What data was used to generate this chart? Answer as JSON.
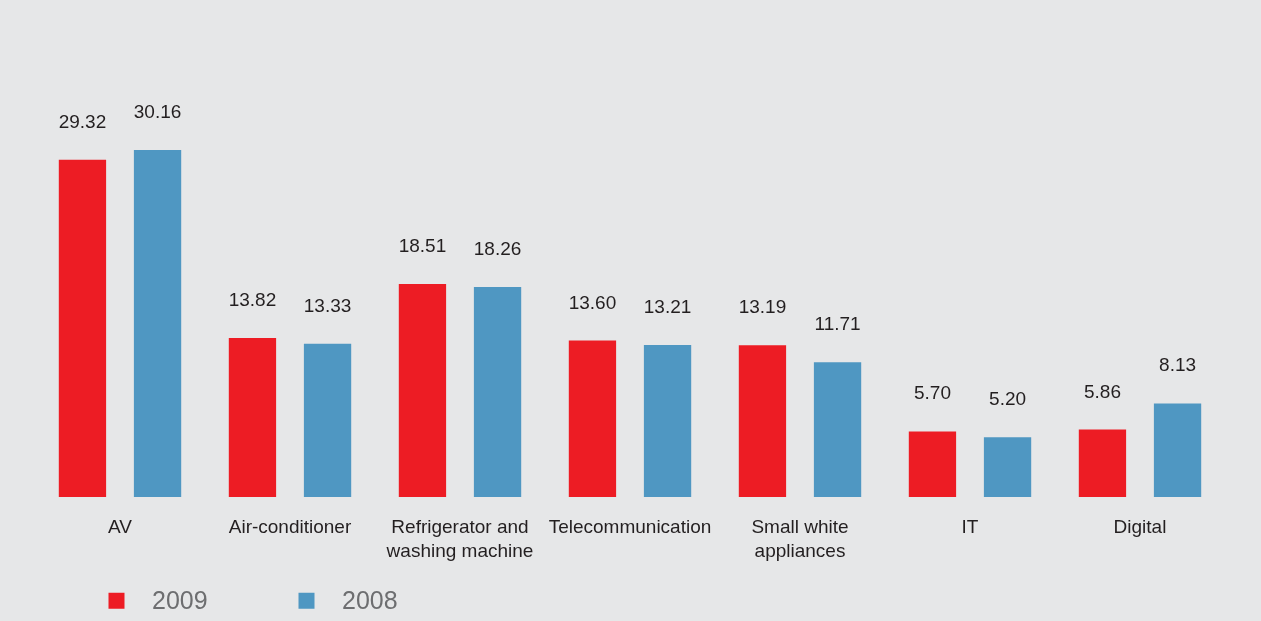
{
  "chart_data": {
    "type": "bar",
    "categories": [
      "AV",
      "Air-conditioner",
      "Refrigerator and washing machine",
      "Telecommunication",
      "Small white appliances",
      "IT",
      "Digital"
    ],
    "series": [
      {
        "name": "2009",
        "color": "#ed1c24",
        "values": [
          29.32,
          13.82,
          18.51,
          13.6,
          13.19,
          5.7,
          5.86
        ],
        "value_labels": [
          "29.32",
          "13.82",
          "18.51",
          "13.60",
          "13.19",
          "5.70",
          "5.86"
        ]
      },
      {
        "name": "2008",
        "color": "#4f97c2",
        "values": [
          30.16,
          13.33,
          18.26,
          13.21,
          11.71,
          5.2,
          8.13
        ],
        "value_labels": [
          "30.16",
          "13.33",
          "18.26",
          "13.21",
          "11.71",
          "5.20",
          "8.13"
        ]
      }
    ],
    "legend": "bottom left"
  }
}
